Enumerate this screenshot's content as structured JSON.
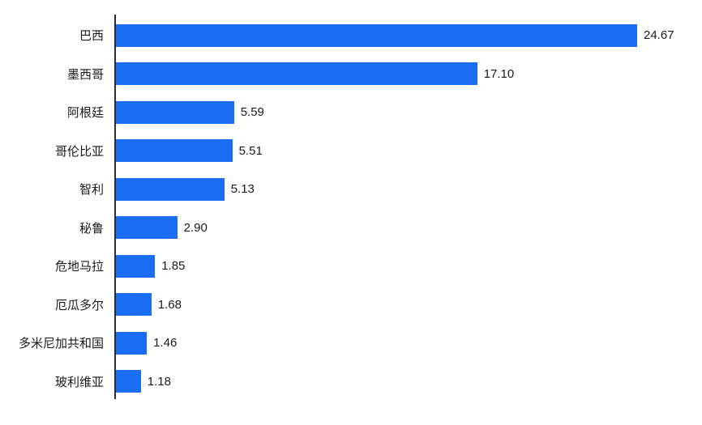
{
  "chart_data": {
    "type": "bar",
    "orientation": "horizontal",
    "title": "",
    "xlabel": "",
    "ylabel": "",
    "categories": [
      "巴西",
      "墨西哥",
      "阿根廷",
      "哥伦比亚",
      "智利",
      "秘鲁",
      "危地马拉",
      "厄瓜多尔",
      "多米尼加共和国",
      "玻利维亚"
    ],
    "values": [
      24.67,
      17.1,
      5.59,
      5.51,
      5.13,
      2.9,
      1.85,
      1.68,
      1.46,
      1.18
    ],
    "value_labels": [
      "24.67",
      "17.10",
      "5.59",
      "5.51",
      "5.13",
      "2.90",
      "1.85",
      "1.68",
      "1.46",
      "1.18"
    ],
    "xlim": [
      0,
      27.7
    ],
    "grid": false,
    "legend_position": "none",
    "colors": {
      "bar": "#1b6ef3",
      "axis": "#2d2d2d",
      "text": "#1a1a1a",
      "background": "#ffffff"
    }
  }
}
